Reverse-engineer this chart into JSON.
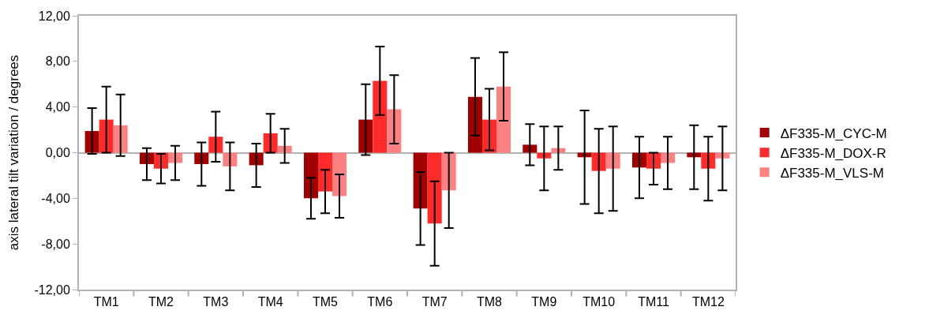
{
  "chart_data": {
    "type": "bar",
    "ylabel": "axis lateral tilt variation / degrees",
    "categories": [
      "TM1",
      "TM2",
      "TM3",
      "TM4",
      "TM5",
      "TM6",
      "TM7",
      "TM8",
      "TM9",
      "TM10",
      "TM11",
      "TM12"
    ],
    "series": [
      {
        "name": "ΔF335-M_CYC-M",
        "color": "#a00000",
        "values": [
          1.9,
          -1.0,
          -1.0,
          -1.1,
          -4.0,
          2.9,
          -4.9,
          4.9,
          0.7,
          -0.4,
          -1.3,
          -0.4
        ],
        "errors": [
          2.0,
          1.4,
          1.9,
          1.9,
          1.8,
          3.1,
          3.2,
          3.4,
          1.8,
          4.1,
          2.7,
          2.8
        ]
      },
      {
        "name": "ΔF335-M_DOX-R",
        "color": "#ff2a2a",
        "values": [
          2.9,
          -1.4,
          1.4,
          1.7,
          -3.4,
          6.3,
          -6.2,
          2.9,
          -0.5,
          -1.6,
          -1.4,
          -1.4
        ],
        "errors": [
          2.9,
          1.3,
          2.2,
          1.7,
          1.9,
          3.0,
          3.7,
          2.7,
          2.8,
          3.7,
          1.4,
          2.8
        ]
      },
      {
        "name": "ΔF335-M_VLS-M",
        "color": "#ff8080",
        "values": [
          2.4,
          -0.9,
          -1.2,
          0.6,
          -3.8,
          3.8,
          -3.3,
          5.8,
          0.4,
          -1.4,
          -0.9,
          -0.5
        ],
        "errors": [
          2.7,
          1.5,
          2.1,
          1.5,
          1.9,
          3.0,
          3.3,
          3.0,
          1.9,
          3.7,
          2.3,
          2.8
        ]
      }
    ],
    "ylim": [
      -12,
      12
    ],
    "yticks": [
      {
        "value": -12,
        "label": "-12,00"
      },
      {
        "value": -8,
        "label": "-8,00"
      },
      {
        "value": -4,
        "label": "-4,00"
      },
      {
        "value": 0,
        "label": "0,00"
      },
      {
        "value": 4,
        "label": "4,00"
      },
      {
        "value": 8,
        "label": "8,00"
      },
      {
        "value": 12,
        "label": "12,00"
      }
    ],
    "legend": "right"
  }
}
